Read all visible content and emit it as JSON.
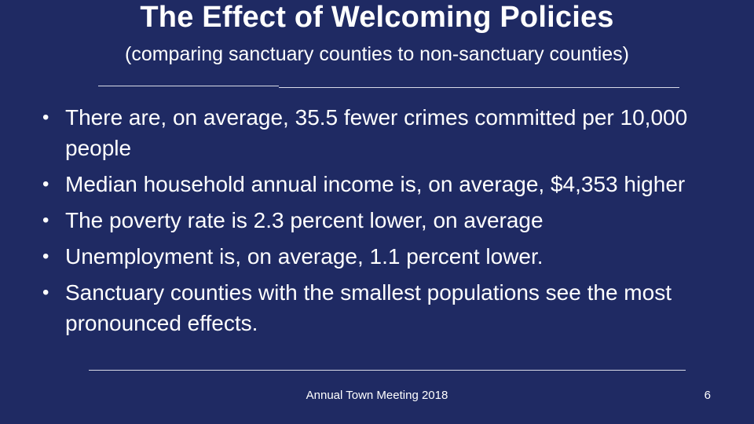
{
  "slide": {
    "title": "The Effect of Welcoming Policies",
    "subtitle": "(comparing sanctuary counties to non-sanctuary counties)",
    "bullets": [
      {
        "text": "There are, on average, 35.5 fewer crimes committed per 10,000 people"
      },
      {
        "text": "Median household annual income is, on average, $4,353 higher"
      },
      {
        "text": "The poverty rate is 2.3 percent lower, on average"
      },
      {
        "text": "Unemployment is, on average, 1.1 percent lower."
      },
      {
        "text": "Sanctuary counties with the smallest populations see the most pronounced effects."
      }
    ],
    "bullet_symbol": "•",
    "footer": "Annual Town Meeting 2018",
    "page_number": "6"
  },
  "colors": {
    "background": "#1f2a63",
    "text": "#ffffff",
    "rule": "#d9dbe8"
  }
}
